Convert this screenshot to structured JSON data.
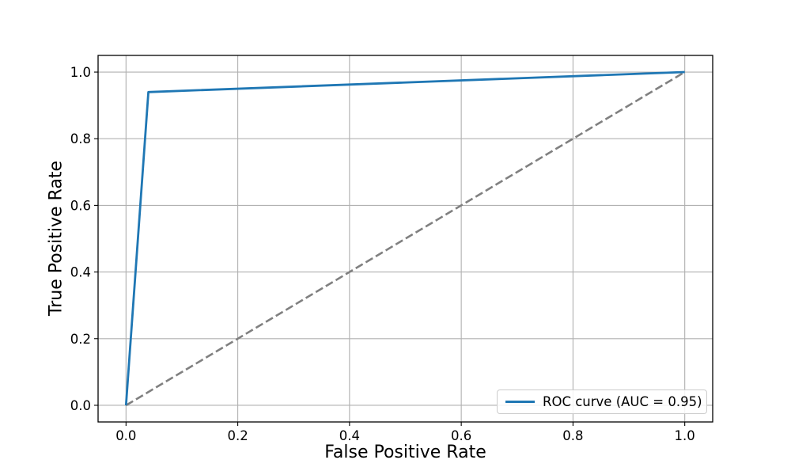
{
  "chart_data": {
    "type": "line",
    "title": "",
    "xlabel": "False Positive Rate",
    "ylabel": "True Positive Rate",
    "xlim": [
      -0.05,
      1.05
    ],
    "ylim": [
      -0.05,
      1.05
    ],
    "xticks": [
      0.0,
      0.2,
      0.4,
      0.6,
      0.8,
      1.0
    ],
    "xtick_labels": [
      "0.0",
      "0.2",
      "0.4",
      "0.6",
      "0.8",
      "1.0"
    ],
    "yticks": [
      0.0,
      0.2,
      0.4,
      0.6,
      0.8,
      1.0
    ],
    "ytick_labels": [
      "0.0",
      "0.2",
      "0.4",
      "0.6",
      "0.8",
      "1.0"
    ],
    "grid": true,
    "grid_color": "#b0b0b0",
    "axis_color": "#000000",
    "legend": {
      "position": "lower right",
      "entries": [
        "ROC curve (AUC = 0.95)"
      ]
    },
    "series": [
      {
        "name": "chance-diagonal",
        "x": [
          0.0,
          1.0
        ],
        "y": [
          0.0,
          1.0
        ],
        "color": "#808080",
        "style": "dashed",
        "linewidth": 2.6,
        "in_legend": false
      },
      {
        "name": "ROC curve (AUC = 0.95)",
        "x": [
          0.0,
          0.04,
          1.0
        ],
        "y": [
          0.0,
          0.94,
          1.0
        ],
        "color": "#1f77b4",
        "style": "solid",
        "linewidth": 2.8,
        "in_legend": true
      }
    ]
  }
}
